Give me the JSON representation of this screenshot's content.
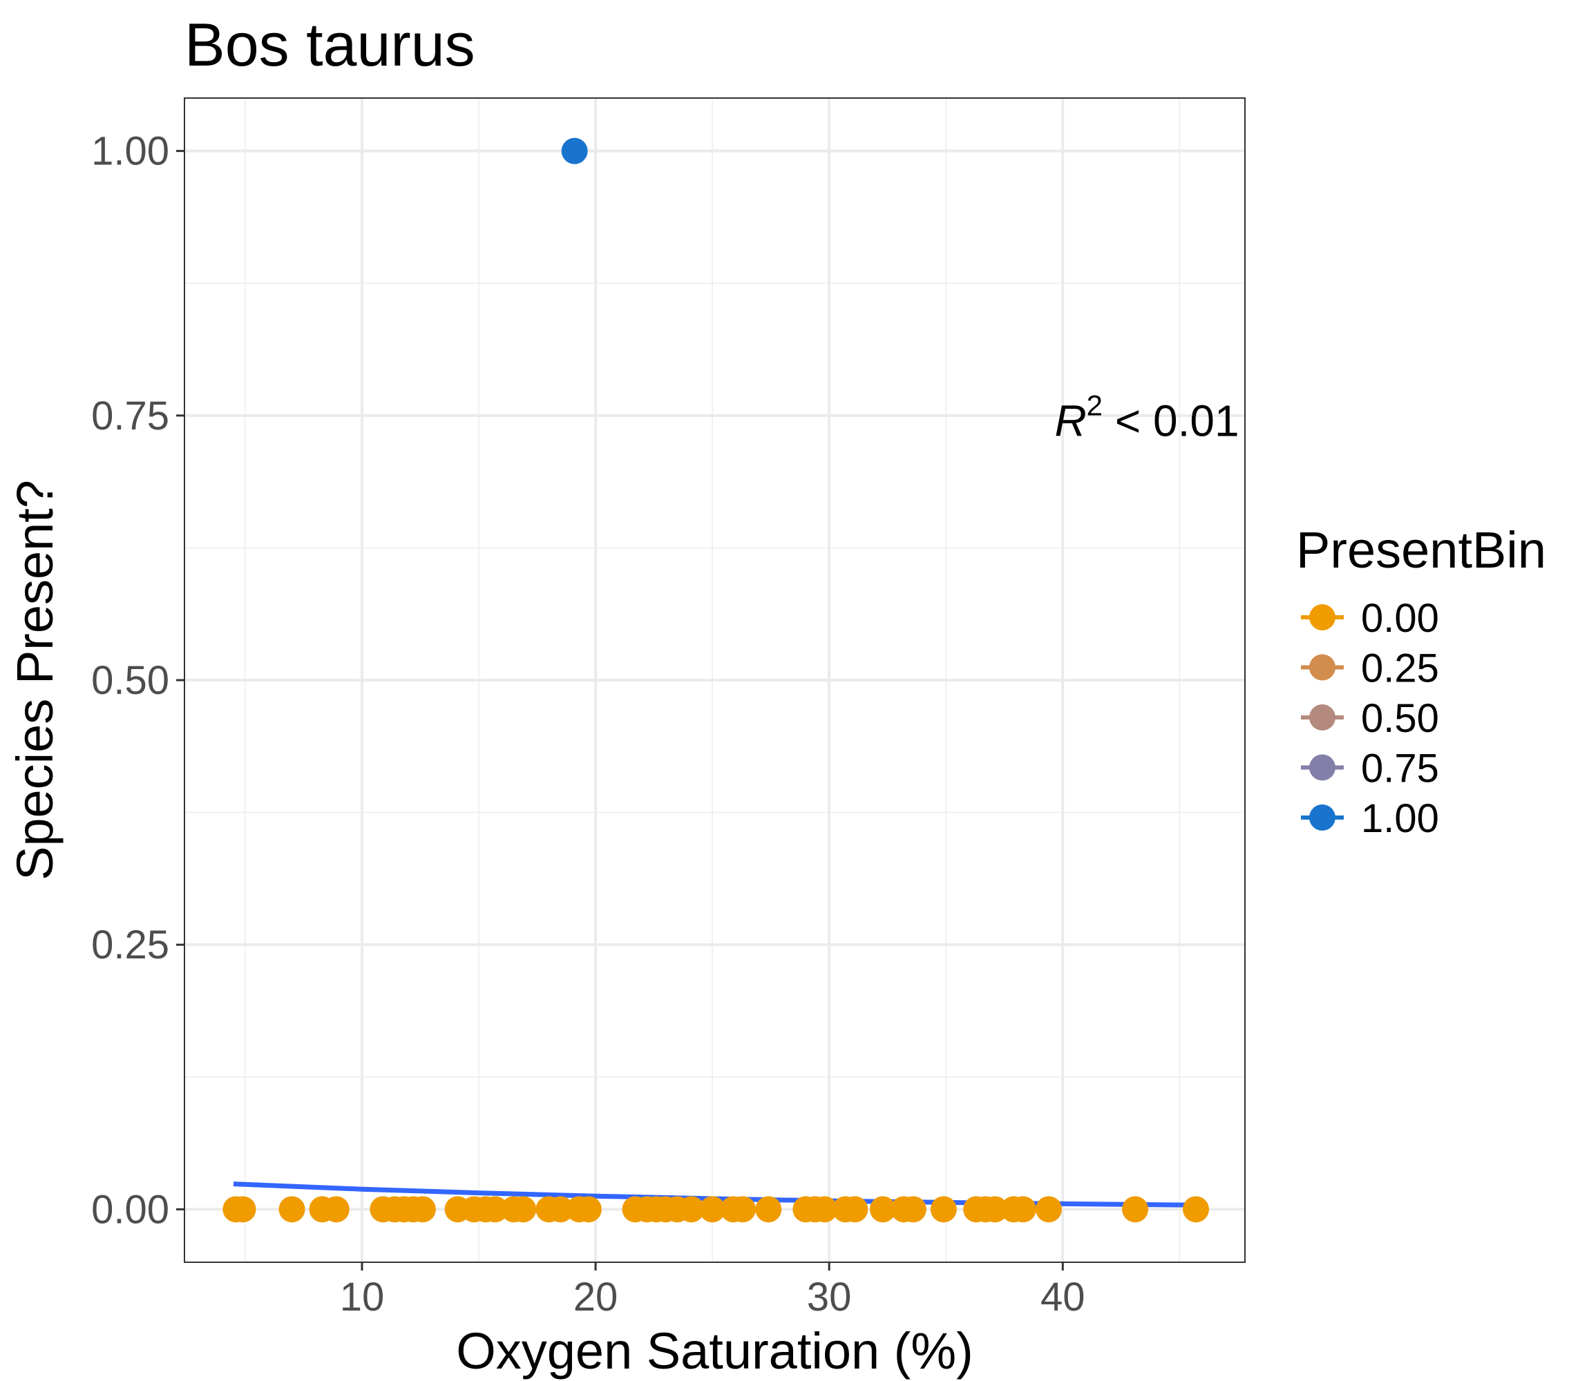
{
  "chart_data": {
    "type": "scatter",
    "title": "Bos taurus",
    "xlabel": "Oxygen Saturation (%)",
    "ylabel": "Species Present?",
    "xlim": [
      2.4,
      47.8
    ],
    "ylim": [
      -0.05,
      1.05
    ],
    "x_ticks": [
      10,
      20,
      30,
      40
    ],
    "x_tick_labels": [
      "10",
      "20",
      "30",
      "40"
    ],
    "y_ticks": [
      0,
      0.25,
      0.5,
      0.75,
      1
    ],
    "y_tick_labels": [
      "0.00",
      "0.25",
      "0.50",
      "0.75",
      "1.00"
    ],
    "grid": true,
    "legend": {
      "title": "PresentBin",
      "position": "right",
      "entries": [
        {
          "label": "0.00",
          "color": "#f09b00"
        },
        {
          "label": "0.25",
          "color": "#d28c4e"
        },
        {
          "label": "0.50",
          "color": "#b48a7e"
        },
        {
          "label": "0.75",
          "color": "#827fa8"
        },
        {
          "label": "1.00",
          "color": "#1874cd"
        }
      ]
    },
    "annotation": {
      "label": "R",
      "superscript": "2",
      "relation": " < 0.01",
      "x": 43.6,
      "y": 0.745
    },
    "points": [
      {
        "x": 4.6,
        "y": 0
      },
      {
        "x": 4.9,
        "y": 0
      },
      {
        "x": 7.0,
        "y": 0
      },
      {
        "x": 8.3,
        "y": 0
      },
      {
        "x": 8.9,
        "y": 0
      },
      {
        "x": 10.9,
        "y": 0
      },
      {
        "x": 11.4,
        "y": 0
      },
      {
        "x": 11.8,
        "y": 0
      },
      {
        "x": 12.2,
        "y": 0
      },
      {
        "x": 12.6,
        "y": 0
      },
      {
        "x": 14.1,
        "y": 0
      },
      {
        "x": 14.8,
        "y": 0
      },
      {
        "x": 15.3,
        "y": 0
      },
      {
        "x": 15.7,
        "y": 0
      },
      {
        "x": 16.5,
        "y": 0
      },
      {
        "x": 16.9,
        "y": 0
      },
      {
        "x": 18.0,
        "y": 0
      },
      {
        "x": 18.5,
        "y": 0
      },
      {
        "x": 19.3,
        "y": 0
      },
      {
        "x": 19.7,
        "y": 0
      },
      {
        "x": 21.7,
        "y": 0
      },
      {
        "x": 22.2,
        "y": 0
      },
      {
        "x": 22.6,
        "y": 0
      },
      {
        "x": 23.0,
        "y": 0
      },
      {
        "x": 23.5,
        "y": 0
      },
      {
        "x": 24.1,
        "y": 0
      },
      {
        "x": 25.0,
        "y": 0
      },
      {
        "x": 25.9,
        "y": 0
      },
      {
        "x": 26.3,
        "y": 0
      },
      {
        "x": 27.4,
        "y": 0
      },
      {
        "x": 29.0,
        "y": 0
      },
      {
        "x": 29.4,
        "y": 0
      },
      {
        "x": 29.8,
        "y": 0
      },
      {
        "x": 30.7,
        "y": 0
      },
      {
        "x": 31.1,
        "y": 0
      },
      {
        "x": 32.3,
        "y": 0
      },
      {
        "x": 33.2,
        "y": 0
      },
      {
        "x": 33.6,
        "y": 0
      },
      {
        "x": 34.9,
        "y": 0
      },
      {
        "x": 36.3,
        "y": 0
      },
      {
        "x": 36.7,
        "y": 0
      },
      {
        "x": 37.1,
        "y": 0
      },
      {
        "x": 37.9,
        "y": 0
      },
      {
        "x": 38.3,
        "y": 0
      },
      {
        "x": 39.4,
        "y": 0
      },
      {
        "x": 43.1,
        "y": 0
      },
      {
        "x": 45.7,
        "y": 0
      },
      {
        "x": 19.1,
        "y": 1
      }
    ],
    "fit_line": {
      "color": "#3366ff",
      "x": [
        4.5,
        10,
        15,
        20,
        25,
        30,
        35,
        40,
        45.7
      ],
      "y": [
        0.024,
        0.019,
        0.0155,
        0.0125,
        0.01,
        0.008,
        0.0065,
        0.0052,
        0.004
      ]
    }
  }
}
